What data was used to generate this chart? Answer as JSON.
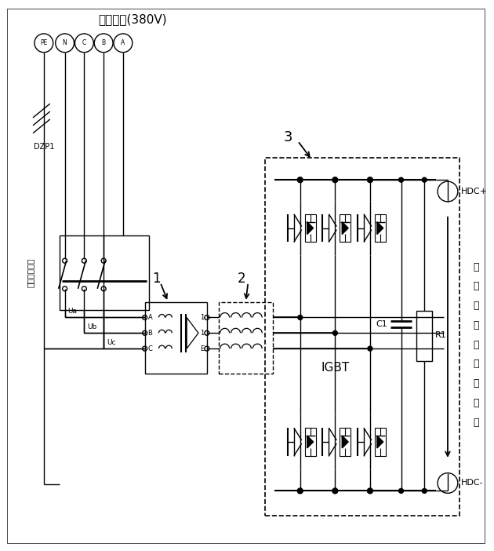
{
  "bg_color": "#ffffff",
  "line_color": "#000000",
  "fig_width": 6.3,
  "fig_height": 7.02,
  "dpi": 100,
  "labels": {
    "grid_title": "国家电网(380V)",
    "overcurrent": "过流保护开关",
    "label1": "1",
    "label2": "2",
    "label3": "3",
    "IGBT": "IGBT",
    "C1": "C1",
    "R1": "R1",
    "HDC_plus": "HDC+",
    "HDC_minus": "HDC-",
    "DZP1": "DZP1",
    "Ua": "Ua",
    "Ub": "Ub",
    "Uc": "Uc",
    "right_label_chars": [
      "高",
      "压",
      "直",
      "流",
      "母",
      "线",
      "输",
      "出",
      "端"
    ],
    "connector_labels": [
      "PE",
      "N",
      "C",
      "B",
      "A"
    ],
    "transformer_left": [
      "A",
      "B",
      "C"
    ],
    "transformer_right": [
      "1",
      "1",
      "E"
    ]
  }
}
